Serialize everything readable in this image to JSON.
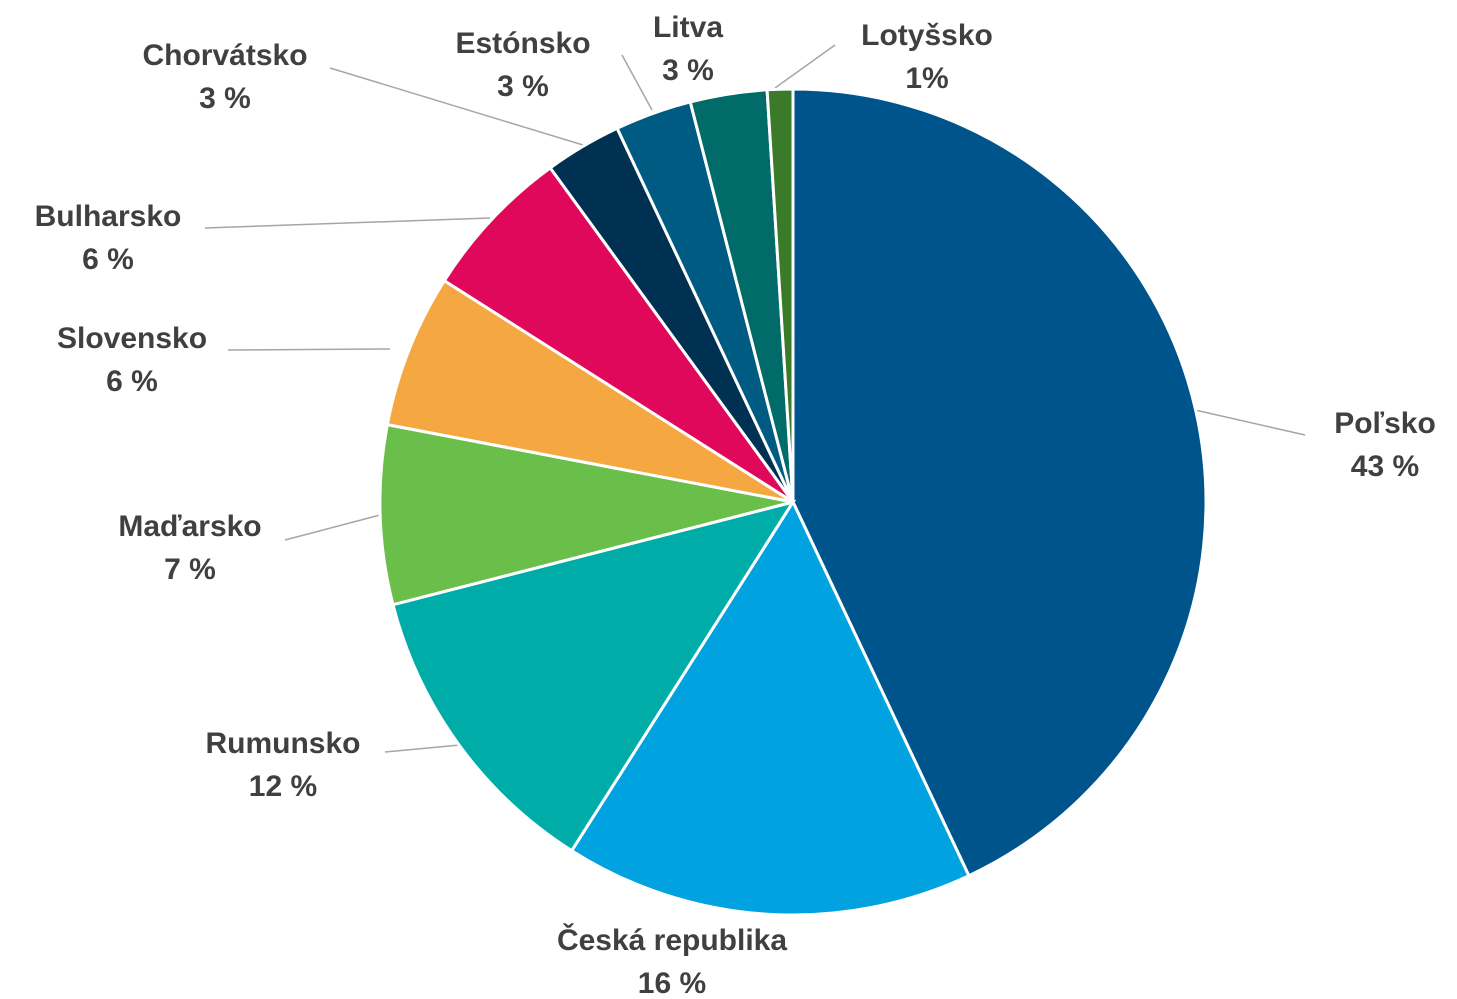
{
  "chart_data": {
    "type": "pie",
    "categories": [
      "Poľsko",
      "Česká republika",
      "Rumunsko",
      "Maďarsko",
      "Slovensko",
      "Bulharsko",
      "Chorvátsko",
      "Estónsko",
      "Litva",
      "Lotyšsko"
    ],
    "values": [
      43,
      16,
      12,
      7,
      6,
      6,
      3,
      3,
      3,
      1
    ],
    "value_labels": [
      "43 %",
      "16 %",
      "12 %",
      "7 %",
      "6 %",
      "6 %",
      "3 %",
      "3 %",
      "3 %",
      "1%"
    ],
    "colors": [
      "#00548c",
      "#00a2e0",
      "#00aca8",
      "#6abf4b",
      "#f5a841",
      "#e0085a",
      "#003152",
      "#005b82",
      "#006b68",
      "#3a7a29"
    ]
  }
}
